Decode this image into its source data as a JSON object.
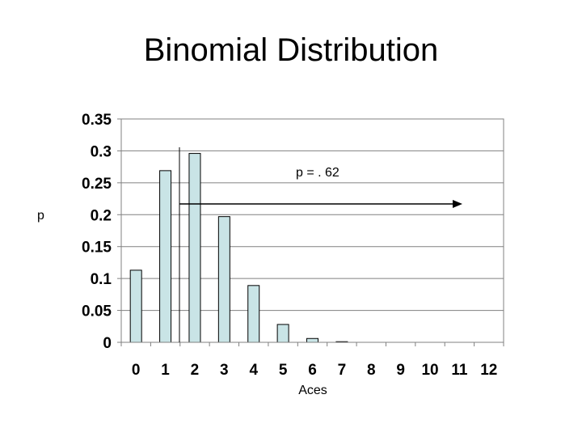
{
  "chart_data": {
    "type": "bar",
    "title": "Binomial Distribution",
    "xlabel": "Aces",
    "ylabel": "p",
    "categories": [
      "0",
      "1",
      "2",
      "3",
      "4",
      "5",
      "6",
      "7",
      "8",
      "9",
      "10",
      "11",
      "12"
    ],
    "values": [
      0.113,
      0.269,
      0.296,
      0.197,
      0.089,
      0.028,
      0.006,
      0.001,
      0,
      0,
      0,
      0,
      0
    ],
    "ylim": [
      0,
      0.35
    ],
    "yticks": [
      "0",
      "0.05",
      "0.1",
      "0.15",
      "0.2",
      "0.25",
      "0.3",
      "0.35"
    ],
    "ytick_values": [
      0,
      0.05,
      0.1,
      0.15,
      0.2,
      0.25,
      0.3,
      0.35
    ],
    "grid": true,
    "bar_color": "#c9e4e6",
    "annotation": {
      "text": "p = . 62"
    }
  }
}
